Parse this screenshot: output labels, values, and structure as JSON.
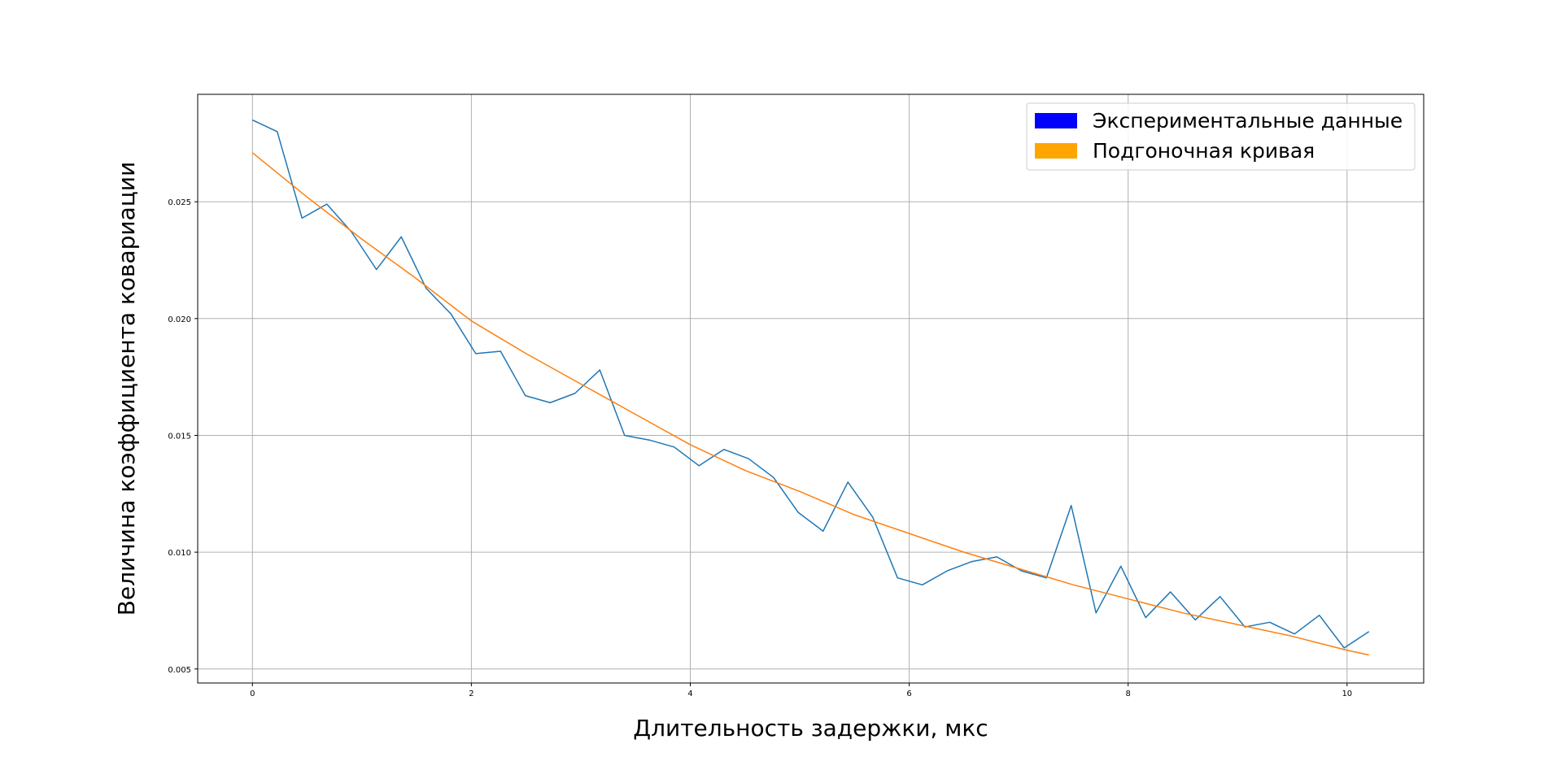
{
  "chart_data": {
    "type": "line",
    "title": "",
    "xlabel": "Длительность задержки, мкс",
    "ylabel": "Величина коэффициента ковариации",
    "xlim": [
      -0.5,
      10.7
    ],
    "ylim": [
      0.0044,
      0.0296
    ],
    "x_ticks": [
      0,
      2,
      4,
      6,
      8,
      10
    ],
    "y_ticks": [
      0.005,
      0.01,
      0.015,
      0.02,
      0.025
    ],
    "x_tick_labels": [
      "0",
      "2",
      "4",
      "6",
      "8",
      "10"
    ],
    "y_tick_labels": [
      "0.005",
      "0.010",
      "0.015",
      "0.020",
      "0.025"
    ],
    "grid": true,
    "legend_position": "top-right",
    "series": [
      {
        "name": "Экспериментальные данные",
        "color": "#1f77b4",
        "legend_color": "#0000ff",
        "x": [
          0.0,
          0.2267,
          0.4533,
          0.68,
          0.9067,
          1.1333,
          1.36,
          1.5867,
          1.8133,
          2.04,
          2.2667,
          2.4933,
          2.72,
          2.9467,
          3.1733,
          3.4,
          3.6267,
          3.8533,
          4.08,
          4.3067,
          4.5333,
          4.76,
          4.9867,
          5.2133,
          5.44,
          5.6667,
          5.8933,
          6.12,
          6.3467,
          6.5733,
          6.8,
          7.0267,
          7.2533,
          7.48,
          7.7067,
          7.9333,
          8.16,
          8.3867,
          8.6133,
          8.84,
          9.0667,
          9.2933,
          9.52,
          9.7467,
          9.9733,
          10.2
        ],
        "values": [
          0.0285,
          0.028,
          0.0243,
          0.0249,
          0.0237,
          0.0221,
          0.0235,
          0.0213,
          0.0202,
          0.0185,
          0.0186,
          0.0167,
          0.0164,
          0.0168,
          0.0178,
          0.015,
          0.0148,
          0.0145,
          0.0137,
          0.0144,
          0.014,
          0.0132,
          0.0117,
          0.0109,
          0.013,
          0.0115,
          0.0089,
          0.0086,
          0.0092,
          0.0096,
          0.0098,
          0.0092,
          0.0089,
          0.012,
          0.0074,
          0.0094,
          0.0072,
          0.0083,
          0.0071,
          0.0081,
          0.0068,
          0.007,
          0.0065,
          0.0073,
          0.0059,
          0.0066
        ]
      },
      {
        "name": "Подгоночная кривая",
        "color": "#ff7f0e",
        "legend_color": "#ffa500",
        "x": [
          0.0,
          0.5,
          1.0,
          1.5,
          2.0,
          2.5,
          3.0,
          3.5,
          4.0,
          4.5,
          5.0,
          5.5,
          6.0,
          6.5,
          7.0,
          7.5,
          8.0,
          8.5,
          9.0,
          9.5,
          10.0,
          10.2
        ],
        "values": [
          0.0271,
          0.0252,
          0.0234,
          0.0217,
          0.0199,
          0.0185,
          0.0172,
          0.0159,
          0.0146,
          0.0135,
          0.0126,
          0.0116,
          0.0108,
          0.01,
          0.0093,
          0.0086,
          0.008,
          0.0074,
          0.0069,
          0.0064,
          0.0058,
          0.0056
        ]
      }
    ]
  }
}
